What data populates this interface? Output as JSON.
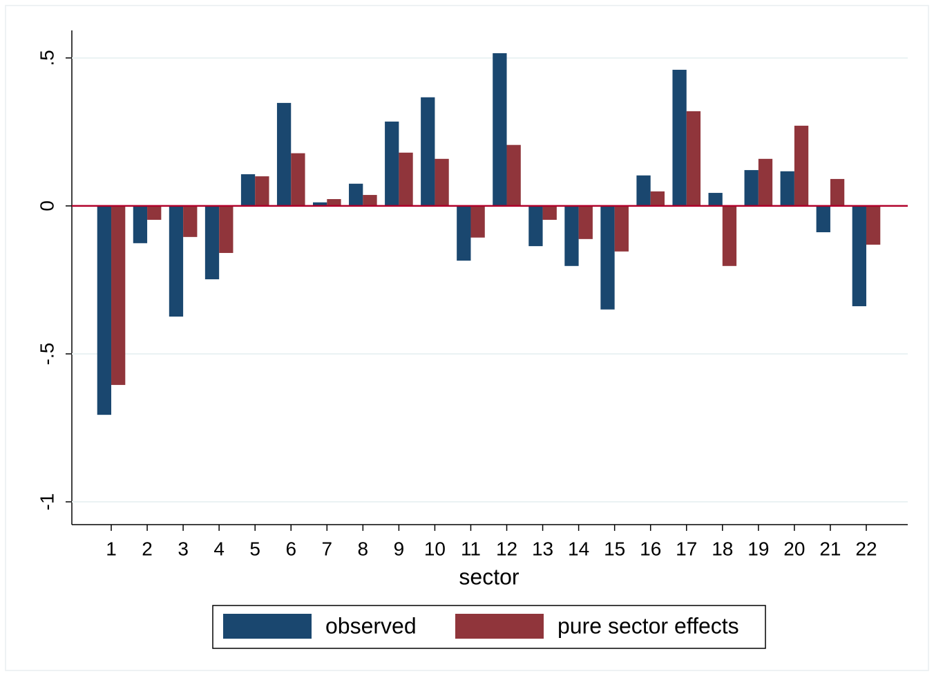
{
  "chart_data": {
    "type": "bar",
    "categories": [
      "1",
      "2",
      "3",
      "4",
      "5",
      "6",
      "7",
      "8",
      "9",
      "10",
      "11",
      "12",
      "13",
      "14",
      "15",
      "16",
      "17",
      "18",
      "19",
      "20",
      "21",
      "22"
    ],
    "series": [
      {
        "name": "observed",
        "color": "#1a476f",
        "values": [
          -0.706,
          -0.126,
          -0.374,
          -0.248,
          0.107,
          0.348,
          0.012,
          0.075,
          0.285,
          0.367,
          -0.185,
          0.516,
          -0.136,
          -0.203,
          -0.35,
          0.103,
          0.46,
          0.044,
          0.121,
          0.117,
          -0.089,
          -0.339
        ]
      },
      {
        "name": "pure sector effects",
        "color": "#90353b",
        "values": [
          -0.605,
          -0.047,
          -0.105,
          -0.159,
          0.1,
          0.178,
          0.023,
          0.037,
          0.18,
          0.159,
          -0.107,
          0.206,
          -0.047,
          -0.112,
          -0.154,
          0.049,
          0.32,
          -0.203,
          0.159,
          0.271,
          0.091,
          -0.131
        ]
      }
    ],
    "x_label": "sector",
    "ylim": [
      -1.077,
      0.593
    ],
    "yticks": [
      {
        "value": -1,
        "label": "-1"
      },
      {
        "value": -0.5,
        "label": "-.5"
      },
      0,
      {
        "value": 0.5,
        "label": ".5"
      }
    ],
    "grid": true,
    "zero_line_color": "#b0002a"
  }
}
